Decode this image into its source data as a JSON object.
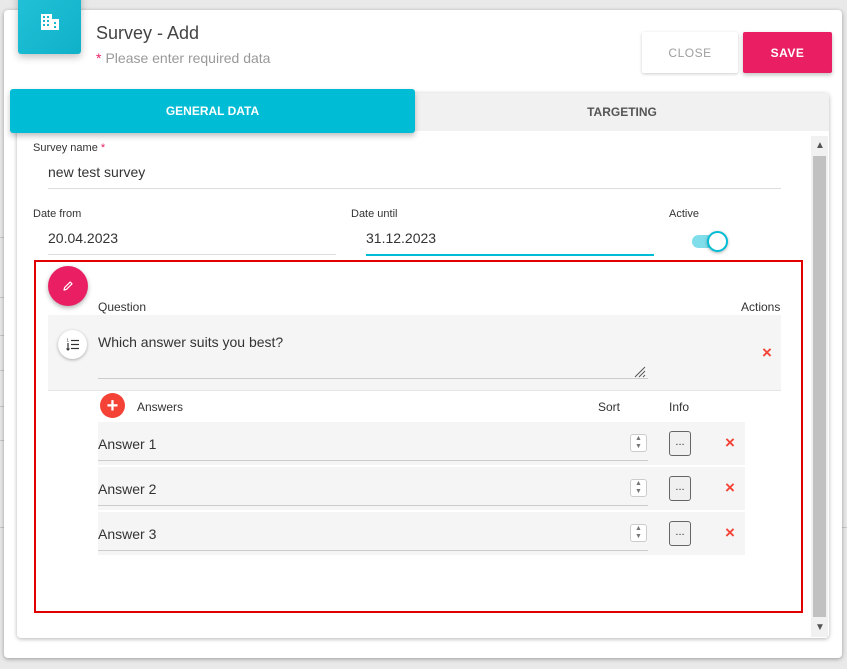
{
  "dialog": {
    "title": "Survey - Add",
    "required_marker": "*",
    "subtitle": "Please enter required data",
    "header_icon": "building-icon",
    "buttons": {
      "close": "CLOSE",
      "save": "SAVE"
    }
  },
  "tabs": [
    {
      "label": "GENERAL DATA",
      "active": true
    },
    {
      "label": "TARGETING",
      "active": false
    }
  ],
  "form": {
    "survey_name": {
      "label": "Survey name",
      "required": "*",
      "value": "new test survey"
    },
    "date_from": {
      "label": "Date from",
      "value": "20.04.2023"
    },
    "date_until": {
      "label": "Date until",
      "value": "31.12.2023"
    },
    "active": {
      "label": "Active",
      "value": true
    }
  },
  "question_section": {
    "question_header": "Question",
    "actions_header": "Actions",
    "question_text": "Which answer suits you best?",
    "answers_header": "Answers",
    "sort_header": "Sort",
    "info_header": "Info",
    "info_button_label": "...",
    "answers": [
      {
        "text": "Answer 1"
      },
      {
        "text": "Answer 2"
      },
      {
        "text": "Answer 3"
      }
    ]
  },
  "icons": {
    "delete": "×",
    "add": "+",
    "stepper_up": "▲",
    "stepper_down": "▼",
    "scroll_up": "▲",
    "scroll_down": "▼"
  },
  "colors": {
    "accent": "#00bcd4",
    "primary_action": "#e91e63",
    "delete": "#f44336",
    "highlight_border": "#e00000"
  }
}
